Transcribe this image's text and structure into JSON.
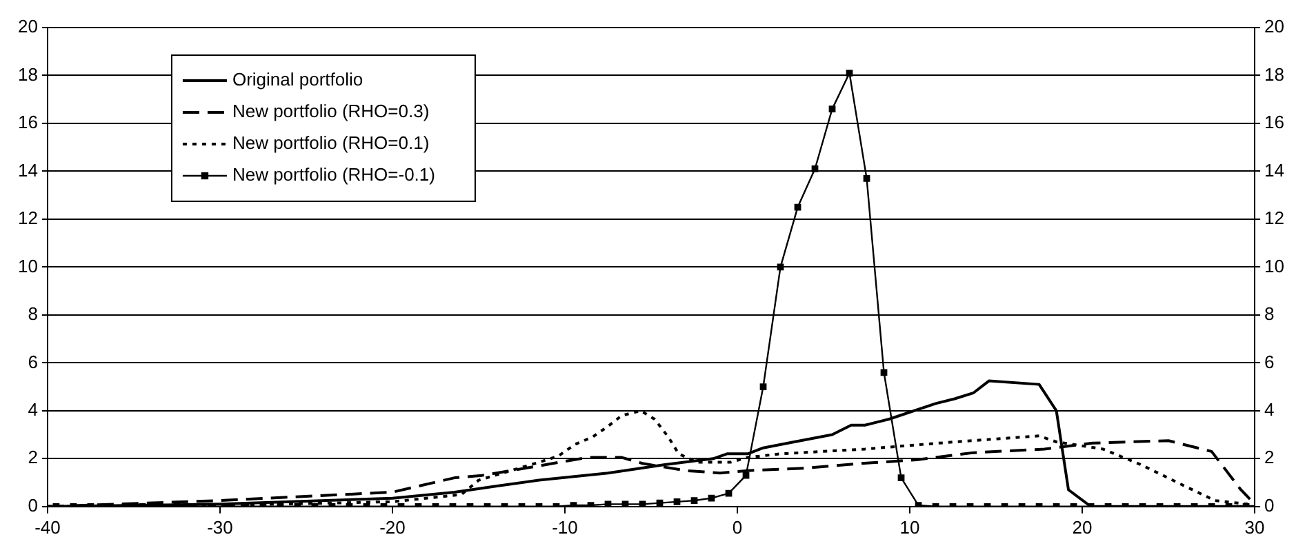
{
  "chart_data": {
    "type": "line",
    "xlim": [
      -40,
      30
    ],
    "xticks": [
      -40,
      -30,
      -20,
      -10,
      0,
      10,
      20,
      30
    ],
    "ylim": [
      0,
      20
    ],
    "yticks": [
      0,
      2,
      4,
      6,
      8,
      10,
      12,
      14,
      16,
      18,
      20
    ],
    "y2lim": [
      0,
      20
    ],
    "y2ticks": [
      0,
      2,
      4,
      6,
      8,
      10,
      12,
      14,
      16,
      18,
      20
    ],
    "grid": "y",
    "legend": "top left",
    "series": [
      {
        "name": "Original portfolio",
        "color": "#000000",
        "line_style": "solid",
        "marker": "none",
        "x": [
          -40,
          -30,
          -20,
          -16.4,
          -14,
          -11.5,
          -7.5,
          -4.2,
          -1.4,
          -0.6,
          0.6,
          1.5,
          3.3,
          5.5,
          6.6,
          7.4,
          8.8,
          11.5,
          12.6,
          13.7,
          14.6,
          17.5,
          18.5,
          19.2,
          20.5,
          30
        ],
        "values": [
          0,
          0.1,
          0.35,
          0.6,
          0.85,
          1.1,
          1.4,
          1.75,
          2,
          2.2,
          2.2,
          2.45,
          2.7,
          3,
          3.4,
          3.4,
          3.65,
          4.3,
          4.5,
          4.75,
          5.25,
          5.1,
          4,
          0.7,
          0,
          0
        ]
      },
      {
        "name": "New portfolio (RHO=0.3)",
        "color": "#000000",
        "line_style": "dashed",
        "marker": "none",
        "x": [
          -40,
          -30,
          -20,
          -16.4,
          -14.8,
          -11.5,
          -8.7,
          -6.7,
          -5.5,
          -3,
          -1,
          0.6,
          3.9,
          7.2,
          10.4,
          13.7,
          17.8,
          20.6,
          25,
          27.5,
          29.2,
          30
        ],
        "values": [
          0,
          0.25,
          0.6,
          1.2,
          1.3,
          1.7,
          2.05,
          2.05,
          1.8,
          1.5,
          1.4,
          1.5,
          1.6,
          1.8,
          1.95,
          2.25,
          2.4,
          2.65,
          2.75,
          2.3,
          0.7,
          0.1
        ]
      },
      {
        "name": "New portfolio (RHO=0.1)",
        "color": "#000000",
        "line_style": "dotted",
        "marker": "none",
        "x": [
          -40,
          -30,
          -20,
          -16,
          -15,
          -11.5,
          -10.4,
          -9.4,
          -8.4,
          -7.5,
          -6.7,
          -5.6,
          -4.8,
          -4,
          -3.4,
          -2.3,
          -0.4,
          0.6,
          2.5,
          7.4,
          12.6,
          17.5,
          18.5,
          21.2,
          23.4,
          26.1,
          27.7,
          29.6
        ],
        "values": [
          0,
          0.05,
          0.2,
          0.5,
          1.1,
          1.85,
          2.1,
          2.6,
          2.9,
          3.35,
          3.8,
          4,
          3.65,
          2.9,
          2.2,
          1.85,
          1.85,
          2.05,
          2.2,
          2.4,
          2.7,
          2.95,
          2.7,
          2.4,
          1.75,
          0.8,
          0.25,
          0.1
        ]
      },
      {
        "name": "New portfolio (RHO=-0.1)",
        "color": "#000000",
        "line_style": "solid",
        "marker": "square",
        "x": [
          -39.5,
          -38.5,
          -37.5,
          -36.5,
          -35.5,
          -34.5,
          -33.5,
          -32.5,
          -31.5,
          -30.5,
          -29.5,
          -28.5,
          -27.5,
          -26.5,
          -25.5,
          -24.5,
          -23.5,
          -22.5,
          -21.5,
          -20.5,
          -19.5,
          -18.5,
          -17.5,
          -16.5,
          -15.5,
          -14.5,
          -13.5,
          -12.5,
          -11.5,
          -10.5,
          -9.5,
          -8.5,
          -7.5,
          -6.5,
          -5.5,
          -4.5,
          -3.5,
          -2.5,
          -1.5,
          -0.5,
          0.5,
          1.5,
          2.5,
          3.5,
          4.5,
          5.5,
          6.5,
          7.5,
          8.5,
          9.5,
          10.5,
          11.5,
          12.5,
          13.5,
          14.5,
          15.5,
          16.5,
          17.5,
          18.5,
          19.5,
          20.5,
          21.5,
          22.5,
          23.5,
          24.5,
          25.5,
          26.5,
          27.5,
          28.5,
          29.5
        ],
        "values": [
          0,
          0,
          0,
          0,
          0,
          0,
          0,
          0,
          0,
          0,
          0,
          0,
          0,
          0,
          0,
          0,
          0,
          0,
          0,
          0,
          0,
          0,
          0,
          0,
          0,
          0,
          0,
          0,
          0,
          0,
          0.05,
          0.05,
          0.1,
          0.1,
          0.1,
          0.15,
          0.2,
          0.25,
          0.35,
          0.55,
          1.3,
          5,
          10,
          12.5,
          14.1,
          16.6,
          18.1,
          13.7,
          5.6,
          1.2,
          0.05,
          0,
          0,
          0,
          0,
          0,
          0,
          0,
          0,
          0,
          0,
          0,
          0,
          0,
          0,
          0,
          0,
          0,
          0,
          0
        ]
      }
    ]
  }
}
